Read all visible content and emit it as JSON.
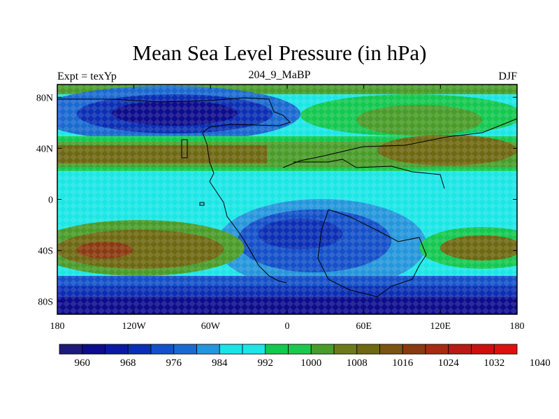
{
  "title": "Mean Sea Level Pressure (in hPa)",
  "left_string": "Expt = texYp",
  "center_string": "204_9_MaBP",
  "right_string": "DJF",
  "map": {
    "lon_range": [
      -180,
      180
    ],
    "lat_range": [
      -90,
      90
    ],
    "x_ticks": [
      {
        "lon": -180,
        "label": "180"
      },
      {
        "lon": -120,
        "label": "120W"
      },
      {
        "lon": -60,
        "label": "60W"
      },
      {
        "lon": 0,
        "label": "0"
      },
      {
        "lon": 60,
        "label": "60E"
      },
      {
        "lon": 120,
        "label": "120E"
      },
      {
        "lon": 180,
        "label": "180"
      }
    ],
    "y_ticks": [
      {
        "lat": 80,
        "label": "80N"
      },
      {
        "lat": 40,
        "label": "40N"
      },
      {
        "lat": 0,
        "label": "0"
      },
      {
        "lat": -40,
        "label": "40S"
      },
      {
        "lat": -80,
        "label": "80S"
      }
    ]
  },
  "colorbar": {
    "colors": [
      "#1e1a7a",
      "#0c0c8c",
      "#0a1aa0",
      "#0b2fb4",
      "#1450c8",
      "#1a6ad0",
      "#2596dc",
      "#16e6e6",
      "#1ce6e6",
      "#14c850",
      "#1ec850",
      "#4a9c2a",
      "#6c7a1a",
      "#6e6812",
      "#7a5410",
      "#8a3a10",
      "#a62a14",
      "#b81a18",
      "#cc1010",
      "#e01010"
    ],
    "labels": [
      "960",
      "968",
      "976",
      "984",
      "992",
      "1000",
      "1008",
      "1016",
      "1024",
      "1032",
      "1040"
    ]
  }
}
